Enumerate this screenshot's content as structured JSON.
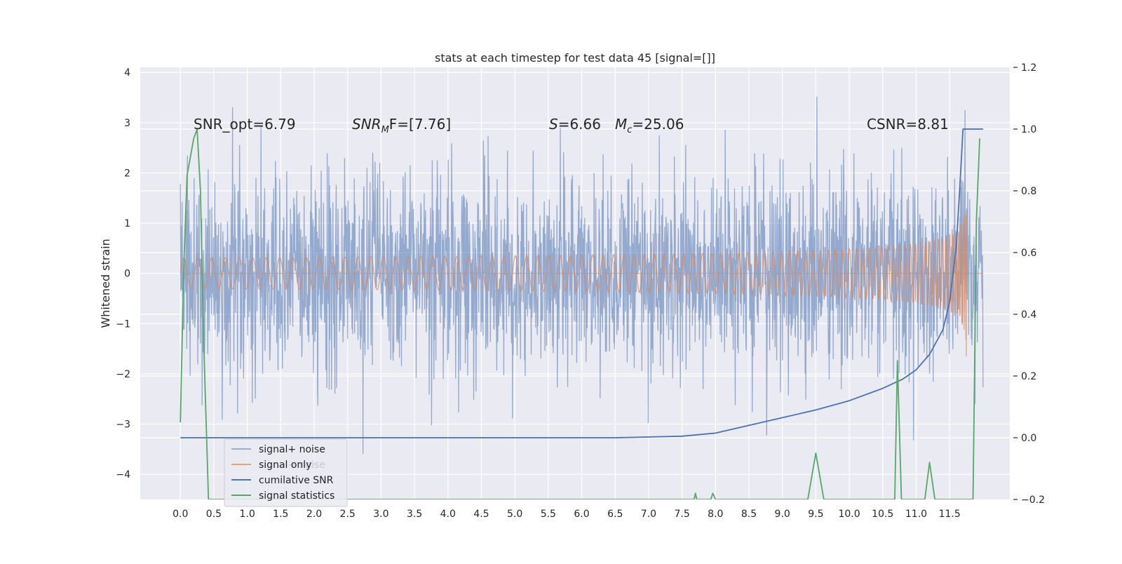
{
  "chart_data": {
    "type": "line",
    "title": "stats at each timestep for test data 45 [signal=[]]",
    "ylabel": "Whitened strain",
    "xlabel": "",
    "xlim": [
      -0.6,
      12.4
    ],
    "ylim": [
      -4.5,
      4.1
    ],
    "y2lim": [
      -0.2,
      1.2
    ],
    "xticks": [
      "0.0",
      "0.5",
      "1.0",
      "1.5",
      "2.0",
      "2.5",
      "3.0",
      "3.5",
      "4.0",
      "4.5",
      "5.0",
      "5.5",
      "6.0",
      "6.5",
      "7.0",
      "7.5",
      "8.0",
      "8.5",
      "9.0",
      "9.5",
      "10.0",
      "10.5",
      "11.0",
      "11.5"
    ],
    "yticks": [
      "4",
      "3",
      "2",
      "1",
      "0",
      "−1",
      "−2",
      "−3",
      "−4"
    ],
    "y2ticks": [
      "1.2",
      "1.0",
      "0.8",
      "0.6",
      "0.4",
      "0.2",
      "0.0",
      "−0.2"
    ],
    "annotations": {
      "snr_opt": "SNR_opt=6.79",
      "snr_mf_main": "SNR",
      "snr_mf_sub": "M",
      "snr_mf_rest": "F=[7.76]",
      "s_var": "S",
      "s_val": "=6.66",
      "mc_var": "M",
      "mc_sub": "c",
      "mc_val": "=25.06",
      "csnr": "CSNR=8.81"
    },
    "series": [
      {
        "name": "signal+ noise",
        "color": "#4c72b0",
        "axis": "left",
        "amplitude_1sigma": 1.0,
        "x_range": [
          0.0,
          12.0
        ]
      },
      {
        "name": "signal only",
        "color": "#dd8452",
        "axis": "left",
        "x_range": [
          0.0,
          11.75
        ],
        "peak_amplitude": 1.5
      },
      {
        "name": "cumilative SNR",
        "color": "#4c72b0",
        "axis": "right",
        "x": [
          0.0,
          6.5,
          7.5,
          8.0,
          8.5,
          9.0,
          9.5,
          10.0,
          10.5,
          10.8,
          11.0,
          11.2,
          11.4,
          11.5,
          11.6,
          11.65,
          11.7,
          12.0
        ],
        "y": [
          0.0,
          0.0,
          0.005,
          0.015,
          0.04,
          0.065,
          0.09,
          0.12,
          0.16,
          0.19,
          0.22,
          0.27,
          0.35,
          0.44,
          0.62,
          0.8,
          1.0,
          1.0
        ]
      },
      {
        "name": "signal statistics",
        "color": "#55a868",
        "axis": "right",
        "x": [
          0.0,
          0.05,
          0.1,
          0.2,
          0.25,
          0.3,
          0.35,
          0.42,
          7.68,
          7.7,
          7.72,
          7.93,
          7.96,
          8.0,
          9.38,
          9.5,
          9.62,
          10.68,
          10.72,
          10.78,
          11.13,
          11.2,
          11.28,
          11.85,
          11.9,
          11.95
        ],
        "y": [
          0.05,
          0.55,
          0.85,
          0.97,
          1.0,
          0.8,
          0.3,
          -0.2,
          -0.2,
          -0.18,
          -0.2,
          -0.2,
          -0.18,
          -0.2,
          -0.2,
          -0.05,
          -0.2,
          -0.2,
          0.25,
          -0.2,
          -0.2,
          -0.08,
          -0.2,
          -0.2,
          0.7,
          0.97
        ]
      }
    ],
    "legend": {
      "position": "lower-left",
      "labels": [
        "signal+ noise",
        "signal only",
        "cumilative SNR",
        "signal statistics"
      ],
      "ghost_labels": [
        "signal+ noise",
        "signal statistics"
      ]
    },
    "grid": true,
    "background": "#eaeaf2",
    "grid_color": "#ffffff"
  }
}
